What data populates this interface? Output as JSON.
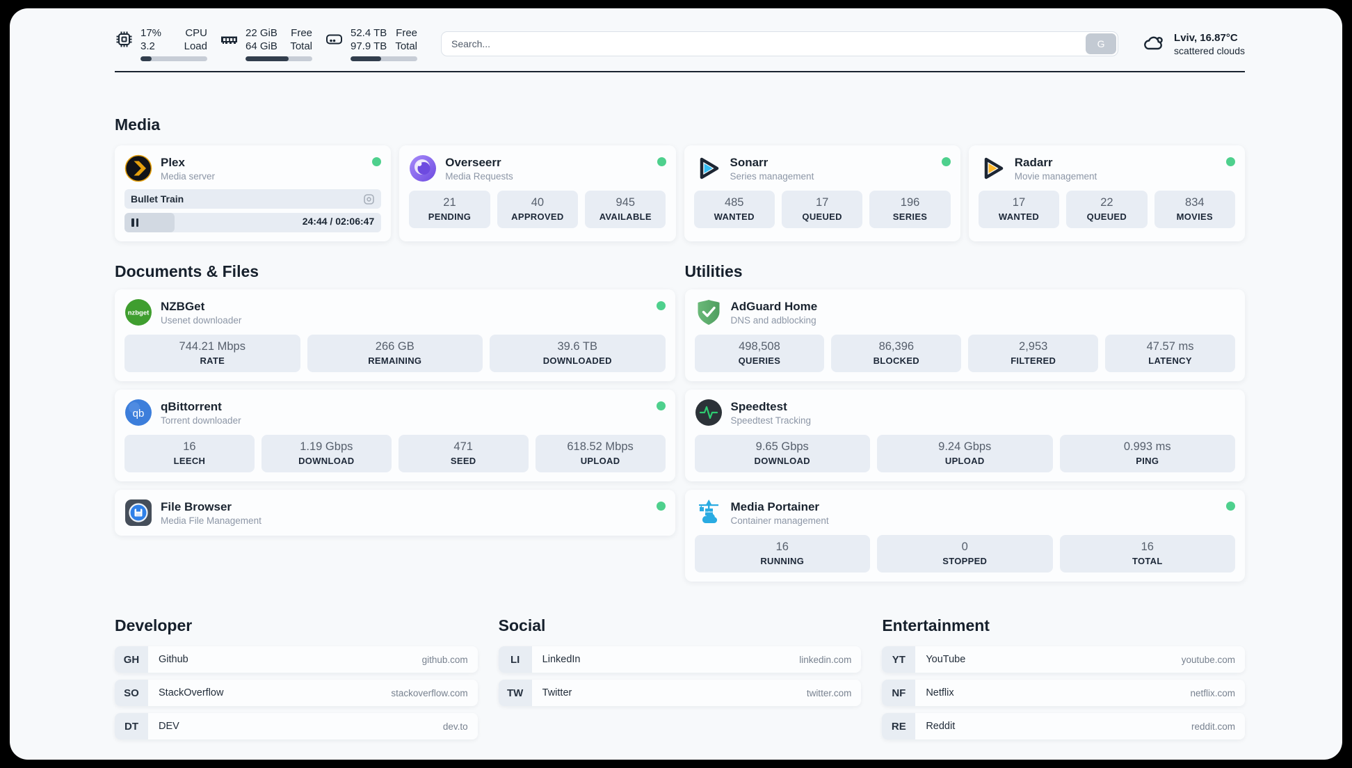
{
  "topbar": {
    "metrics": [
      {
        "row1_left": "17%",
        "row1_right": "CPU",
        "row2_left": "3.2",
        "row2_right": "Load",
        "progress": 17
      },
      {
        "row1_left": "22 GiB",
        "row1_right": "Free",
        "row2_left": "64 GiB",
        "row2_right": "Total",
        "progress": 65
      },
      {
        "row1_left": "52.4 TB",
        "row1_right": "Free",
        "row2_left": "97.9 TB",
        "row2_right": "Total",
        "progress": 46
      }
    ],
    "search": {
      "placeholder": "Search...",
      "button_label": "G"
    },
    "weather": {
      "location": "Lviv, 16.87°C",
      "condition": "scattered clouds"
    }
  },
  "media": {
    "title": "Media",
    "plex": {
      "title": "Plex",
      "subtitle": "Media server",
      "now_playing": "Bullet Train",
      "time_display": "24:44 / 02:06:47",
      "progress": 19.5
    },
    "overseerr": {
      "title": "Overseerr",
      "subtitle": "Media Requests",
      "stats": [
        {
          "value": "21",
          "label": "PENDING"
        },
        {
          "value": "40",
          "label": "APPROVED"
        },
        {
          "value": "945",
          "label": "AVAILABLE"
        }
      ]
    },
    "sonarr": {
      "title": "Sonarr",
      "subtitle": "Series management",
      "stats": [
        {
          "value": "485",
          "label": "WANTED"
        },
        {
          "value": "17",
          "label": "QUEUED"
        },
        {
          "value": "196",
          "label": "SERIES"
        }
      ]
    },
    "radarr": {
      "title": "Radarr",
      "subtitle": "Movie management",
      "stats": [
        {
          "value": "17",
          "label": "WANTED"
        },
        {
          "value": "22",
          "label": "QUEUED"
        },
        {
          "value": "834",
          "label": "MOVIES"
        }
      ]
    }
  },
  "documents": {
    "title": "Documents & Files",
    "nzbget": {
      "title": "NZBGet",
      "subtitle": "Usenet downloader",
      "stats": [
        {
          "value": "744.21 Mbps",
          "label": "RATE"
        },
        {
          "value": "266 GB",
          "label": "REMAINING"
        },
        {
          "value": "39.6 TB",
          "label": "DOWNLOADED"
        }
      ]
    },
    "qbittorrent": {
      "title": "qBittorrent",
      "subtitle": "Torrent downloader",
      "stats": [
        {
          "value": "16",
          "label": "LEECH"
        },
        {
          "value": "1.19 Gbps",
          "label": "DOWNLOAD"
        },
        {
          "value": "471",
          "label": "SEED"
        },
        {
          "value": "618.52 Mbps",
          "label": "UPLOAD"
        }
      ]
    },
    "filebrowser": {
      "title": "File Browser",
      "subtitle": "Media File Management"
    }
  },
  "utilities": {
    "title": "Utilities",
    "adguard": {
      "title": "AdGuard Home",
      "subtitle": "DNS and adblocking",
      "stats": [
        {
          "value": "498,508",
          "label": "QUERIES"
        },
        {
          "value": "86,396",
          "label": "BLOCKED"
        },
        {
          "value": "2,953",
          "label": "FILTERED"
        },
        {
          "value": "47.57 ms",
          "label": "LATENCY"
        }
      ]
    },
    "speedtest": {
      "title": "Speedtest",
      "subtitle": "Speedtest Tracking",
      "stats": [
        {
          "value": "9.65 Gbps",
          "label": "DOWNLOAD"
        },
        {
          "value": "9.24 Gbps",
          "label": "UPLOAD"
        },
        {
          "value": "0.993 ms",
          "label": "PING"
        }
      ]
    },
    "portainer": {
      "title": "Media Portainer",
      "subtitle": "Container management",
      "stats": [
        {
          "value": "16",
          "label": "RUNNING"
        },
        {
          "value": "0",
          "label": "STOPPED"
        },
        {
          "value": "16",
          "label": "TOTAL"
        }
      ]
    }
  },
  "developer": {
    "title": "Developer",
    "links": [
      {
        "abbr": "GH",
        "name": "Github",
        "url": "github.com"
      },
      {
        "abbr": "SO",
        "name": "StackOverflow",
        "url": "stackoverflow.com"
      },
      {
        "abbr": "DT",
        "name": "DEV",
        "url": "dev.to"
      }
    ]
  },
  "social": {
    "title": "Social",
    "links": [
      {
        "abbr": "LI",
        "name": "LinkedIn",
        "url": "linkedin.com"
      },
      {
        "abbr": "TW",
        "name": "Twitter",
        "url": "twitter.com"
      }
    ]
  },
  "entertainment": {
    "title": "Entertainment",
    "links": [
      {
        "abbr": "YT",
        "name": "YouTube",
        "url": "youtube.com"
      },
      {
        "abbr": "NF",
        "name": "Netflix",
        "url": "netflix.com"
      },
      {
        "abbr": "RE",
        "name": "Reddit",
        "url": "reddit.com"
      }
    ]
  },
  "colors": {
    "status_online": "#4ed08d",
    "accent_dark": "#1b2733"
  }
}
